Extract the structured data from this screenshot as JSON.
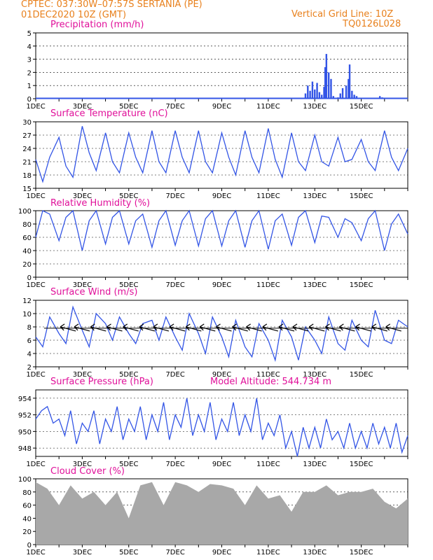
{
  "header": {
    "line1_left": "CPTEC:   037:30W–07:57S   SERTANIA (PE)",
    "line2_left": "01DEC2020 10Z (GMT)",
    "line1_right": "Vertical Grid Line: 10Z",
    "line2_right": "TQ0126L028"
  },
  "colors": {
    "line": "#3355e6",
    "title": "#e0109a",
    "header": "#e8801c",
    "cloud": "#a8a8a8"
  },
  "chart_data": [
    {
      "type": "bar",
      "title": "Precipitation (mm/h)",
      "ylim": [
        0,
        5
      ],
      "yticks": [
        "0",
        "1",
        "2",
        "3",
        "4",
        "5"
      ],
      "xticks": [
        "1DEC",
        "3DEC",
        "5DEC",
        "7DEC",
        "9DEC",
        "11DEC",
        "13DEC",
        "15DEC"
      ],
      "series": [
        {
          "x": [
            5.3,
            11.6,
            11.7,
            11.8,
            11.9,
            12.0,
            12.1,
            12.2,
            12.3,
            12.4,
            12.45,
            12.5,
            12.6,
            12.7,
            12.8,
            13.0,
            13.1,
            13.2,
            13.35,
            13.45,
            13.5,
            13.6,
            13.7,
            13.8,
            14.8,
            14.9
          ],
          "values": [
            0.05,
            0.4,
            1.0,
            0.6,
            1.3,
            0.7,
            1.2,
            0.5,
            0.3,
            0.9,
            2.4,
            3.4,
            2.0,
            1.5,
            0.2,
            0.1,
            0.4,
            0.8,
            1.0,
            1.5,
            2.6,
            0.6,
            0.3,
            0.2,
            0.2,
            0.1
          ]
        }
      ]
    },
    {
      "type": "line",
      "title": "Surface Temperature (nC)",
      "ylim": [
        15,
        30
      ],
      "yticks": [
        "15",
        "18",
        "21",
        "24",
        "27",
        "30"
      ],
      "xticks": [
        "1DEC",
        "3DEC",
        "5DEC",
        "7DEC",
        "9DEC",
        "11DEC",
        "13DEC",
        "15DEC"
      ],
      "series": [
        {
          "x": [
            0,
            0.3,
            0.6,
            1.0,
            1.3,
            1.6,
            2.0,
            2.3,
            2.6,
            3.0,
            3.3,
            3.6,
            4.0,
            4.3,
            4.6,
            5.0,
            5.3,
            5.6,
            6.0,
            6.3,
            6.6,
            7.0,
            7.3,
            7.6,
            8.0,
            8.3,
            8.6,
            9.0,
            9.3,
            9.6,
            10.0,
            10.3,
            10.6,
            11.0,
            11.3,
            11.6,
            12.0,
            12.3,
            12.6,
            13.0,
            13.3,
            13.6,
            14.0,
            14.3,
            14.6,
            15.0,
            15.3,
            15.6,
            16.0
          ],
          "values": [
            21.5,
            16.5,
            22,
            26.5,
            20,
            17.5,
            29,
            23,
            19,
            27.5,
            21,
            18.5,
            27.5,
            22,
            18.5,
            28,
            21,
            18.5,
            28,
            22,
            18.5,
            28,
            21,
            18.5,
            27.5,
            22,
            18,
            28,
            22,
            18.5,
            28.5,
            21.5,
            17.5,
            27.5,
            21,
            19,
            27,
            21,
            20,
            26.5,
            21,
            21.5,
            26,
            21,
            19,
            28,
            22,
            19,
            24
          ]
        }
      ]
    },
    {
      "type": "line",
      "title": "Relative Humidity (%)",
      "ylim": [
        0,
        100
      ],
      "yticks": [
        "0",
        "20",
        "40",
        "60",
        "80",
        "100"
      ],
      "xticks": [
        "1DEC",
        "3DEC",
        "5DEC",
        "7DEC",
        "9DEC",
        "11DEC",
        "13DEC",
        "15DEC"
      ],
      "series": [
        {
          "x": [
            0,
            0.3,
            0.6,
            1.0,
            1.3,
            1.6,
            2.0,
            2.3,
            2.6,
            3.0,
            3.3,
            3.6,
            4.0,
            4.3,
            4.6,
            5.0,
            5.3,
            5.6,
            6.0,
            6.3,
            6.6,
            7.0,
            7.3,
            7.6,
            8.0,
            8.3,
            8.6,
            9.0,
            9.3,
            9.6,
            10.0,
            10.3,
            10.6,
            11.0,
            11.3,
            11.6,
            12.0,
            12.3,
            12.6,
            13.0,
            13.3,
            13.6,
            14.0,
            14.3,
            14.6,
            15.0,
            15.3,
            15.6,
            16.0
          ],
          "values": [
            60,
            100,
            95,
            55,
            90,
            100,
            40,
            85,
            100,
            50,
            90,
            100,
            50,
            85,
            95,
            45,
            85,
            100,
            48,
            85,
            100,
            47,
            88,
            100,
            47,
            85,
            100,
            45,
            85,
            100,
            42,
            85,
            95,
            48,
            90,
            100,
            52,
            92,
            90,
            60,
            88,
            82,
            55,
            88,
            100,
            40,
            80,
            95,
            65
          ]
        }
      ]
    },
    {
      "type": "line",
      "title": "Surface Wind (m/s)",
      "ylim": [
        2,
        12
      ],
      "yticks": [
        "2",
        "4",
        "6",
        "8",
        "10",
        "12"
      ],
      "xticks": [
        "1DEC",
        "3DEC",
        "5DEC",
        "7DEC",
        "9DEC",
        "11DEC",
        "13DEC",
        "15DEC"
      ],
      "series": [
        {
          "x": [
            0,
            0.3,
            0.6,
            1.0,
            1.3,
            1.6,
            2.0,
            2.3,
            2.6,
            3.0,
            3.3,
            3.6,
            4.0,
            4.3,
            4.6,
            5.0,
            5.3,
            5.6,
            6.0,
            6.3,
            6.6,
            7.0,
            7.3,
            7.6,
            8.0,
            8.3,
            8.6,
            9.0,
            9.3,
            9.6,
            10.0,
            10.3,
            10.6,
            11.0,
            11.3,
            11.6,
            12.0,
            12.3,
            12.6,
            13.0,
            13.3,
            13.6,
            14.0,
            14.3,
            14.6,
            15.0,
            15.3,
            15.6,
            16.0
          ],
          "values": [
            6.5,
            5,
            9.5,
            7,
            5.5,
            11,
            7.5,
            5,
            10,
            8.5,
            6,
            9.5,
            7,
            5.5,
            8.5,
            9,
            6,
            9.5,
            6.5,
            4.5,
            10,
            7,
            4,
            9.5,
            6.5,
            3.5,
            9,
            5,
            3.5,
            8.5,
            6,
            3,
            9,
            6.5,
            3,
            8,
            6,
            4,
            9.5,
            5.5,
            4.5,
            9,
            6,
            5,
            10.5,
            6,
            5.5,
            9,
            8
          ]
        }
      ],
      "wind_arrows": [
        1.3,
        1.9,
        2.6,
        3.3,
        4.0,
        4.7,
        5.3,
        6.0,
        6.7,
        7.3,
        8.0,
        8.7,
        9.3,
        10.0,
        10.7,
        11.3,
        12.0,
        12.7,
        13.3,
        14.0,
        14.7,
        15.3
      ]
    },
    {
      "type": "line",
      "title": "Surface Pressure (hPa)",
      "subtitle": "Model Altitude: 544.734  m",
      "ylim": [
        947,
        955
      ],
      "yticks": [
        "948",
        "950",
        "952",
        "954"
      ],
      "ytick_values": [
        948,
        950,
        952,
        954
      ],
      "xticks": [
        "1DEC",
        "3DEC",
        "5DEC",
        "7DEC",
        "9DEC",
        "11DEC",
        "13DEC",
        "15DEC"
      ],
      "series": [
        {
          "x": [
            0,
            0.25,
            0.5,
            0.75,
            1.0,
            1.25,
            1.5,
            1.75,
            2.0,
            2.25,
            2.5,
            2.75,
            3.0,
            3.25,
            3.5,
            3.75,
            4.0,
            4.25,
            4.5,
            4.75,
            5.0,
            5.25,
            5.5,
            5.75,
            6.0,
            6.25,
            6.5,
            6.75,
            7.0,
            7.25,
            7.5,
            7.75,
            8.0,
            8.25,
            8.5,
            8.75,
            9.0,
            9.25,
            9.5,
            9.75,
            10.0,
            10.25,
            10.5,
            10.75,
            11.0,
            11.25,
            11.5,
            11.75,
            12.0,
            12.25,
            12.5,
            12.75,
            13.0,
            13.25,
            13.5,
            13.75,
            14.0,
            14.25,
            14.5,
            14.75,
            15.0,
            15.25,
            15.5,
            15.75,
            16.0
          ],
          "values": [
            951.5,
            952.5,
            953,
            951,
            951.5,
            949.5,
            952.5,
            948.5,
            951,
            950,
            952.5,
            948.5,
            951.5,
            950,
            953,
            949,
            951.5,
            950,
            953,
            949,
            952,
            950,
            953.5,
            949,
            952,
            950.5,
            954,
            949.5,
            952,
            950,
            953.5,
            949,
            951.5,
            950,
            953.5,
            949.5,
            952,
            950,
            954,
            949,
            951,
            949.5,
            952,
            948,
            950,
            947,
            950.5,
            948,
            950.5,
            948,
            951.5,
            949,
            950,
            948,
            951,
            948,
            950,
            948,
            951,
            948.5,
            950.5,
            948,
            951,
            947.5,
            949.5
          ]
        }
      ]
    },
    {
      "type": "area",
      "title": "Cloud Cover (%)",
      "ylim": [
        0,
        100
      ],
      "yticks": [
        "0",
        "20",
        "40",
        "60",
        "80",
        "100"
      ],
      "xticks": [
        "1DEC",
        "3DEC",
        "5DEC",
        "7DEC",
        "9DEC",
        "11DEC",
        "13DEC",
        "15DEC"
      ],
      "series": [
        {
          "x": [
            0,
            0.5,
            1.0,
            1.5,
            2.0,
            2.5,
            3.0,
            3.5,
            4.0,
            4.5,
            5.0,
            5.5,
            6.0,
            6.5,
            7.0,
            7.5,
            8.0,
            8.5,
            9.0,
            9.5,
            10.0,
            10.5,
            11.0,
            11.5,
            12.0,
            12.5,
            13.0,
            13.5,
            14.0,
            14.5,
            15.0,
            15.5,
            16.0
          ],
          "values": [
            95,
            85,
            60,
            90,
            70,
            80,
            60,
            80,
            40,
            90,
            95,
            60,
            95,
            90,
            80,
            92,
            90,
            85,
            60,
            90,
            70,
            75,
            50,
            80,
            80,
            90,
            75,
            80,
            80,
            85,
            65,
            55,
            70
          ]
        }
      ]
    }
  ]
}
